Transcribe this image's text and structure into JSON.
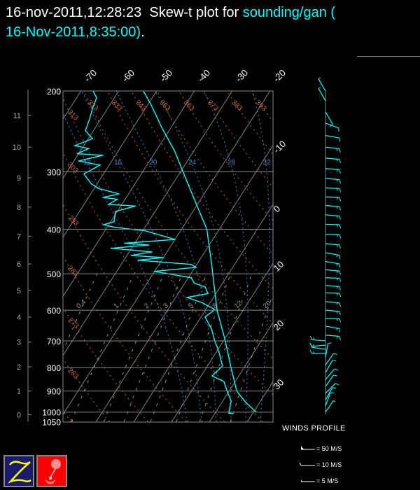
{
  "header": {
    "timestamp": "16-nov-2011,12:28:23",
    "title_text": "Skew-t plot for",
    "sounding_name": "sounding/gan (",
    "sounding_time": "16-Nov-2011,8:35:00)",
    "trailer": "."
  },
  "colors": {
    "background": "#000000",
    "sounding_trace": "#00ffff",
    "isotherm": "#808080",
    "dry_adiabat": "#c8643c",
    "moist_adiabat": "#4682c8",
    "mixing_ratio": "#909090",
    "wind_barb": "#00ffff"
  },
  "legend": {
    "title": "WINDS PROFILE",
    "items": [
      {
        "label": "= 50 M/S",
        "speed": 50
      },
      {
        "label": "= 10 M/S",
        "speed": 10
      },
      {
        "label": "= 5 M/S",
        "speed": 5
      }
    ]
  },
  "logos": [
    "Z logo",
    "balloon logo"
  ],
  "chart_data": {
    "type": "line",
    "subtype": "skew-t log-p",
    "y_axis": {
      "scale": "log",
      "ylim": [
        1050,
        200
      ],
      "unit": "hPa",
      "tick_labels": [
        "200",
        "300",
        "400",
        "500",
        "600",
        "700",
        "800",
        "900",
        "1000",
        "1050"
      ]
    },
    "height_axis": {
      "unit": "km",
      "tick_labels": [
        "0",
        "1",
        "2",
        "3",
        "4",
        "5",
        "6",
        "7",
        "8",
        "9",
        "10",
        "11"
      ],
      "pressure_at_ticks": [
        1013,
        900,
        797,
        704,
        621,
        544,
        476,
        414,
        358,
        309,
        265,
        226
      ]
    },
    "x_axis": {
      "unit": "degC",
      "skewed": true,
      "top_tick_labels": [
        "-70",
        "-60",
        "-50",
        "-40",
        "-30",
        "-20"
      ],
      "right_tick_labels": [
        "-10",
        "0",
        "10",
        "20",
        "30"
      ]
    },
    "dry_adiabat_labels": [
      "253",
      "263",
      "273",
      "283",
      "293",
      "303",
      "313",
      "323",
      "333",
      "343",
      "353",
      "363",
      "373",
      "383",
      "393"
    ],
    "moist_adiabat_labels": [
      "12",
      "16",
      "20",
      "24",
      "28",
      "32"
    ],
    "mixing_ratio_labels": [
      "0.4",
      "1",
      "2",
      "3",
      "5",
      "8",
      "12",
      "20"
    ],
    "series": [
      {
        "role": "temperature",
        "p": [
          200,
          214,
          240,
          270,
          300,
          351,
          400,
          472,
          500,
          600,
          700,
          800,
          900,
          950,
          1000
        ],
        "t": [
          -53.5,
          -49.2,
          -42.5,
          -35.1,
          -29.3,
          -20.6,
          -13.3,
          -6.5,
          -4.2,
          3.1,
          10.5,
          16.5,
          22.0,
          26.1,
          30.7
        ]
      },
      {
        "role": "dewpoint",
        "p": [
          200,
          207,
          217,
          230,
          244,
          254,
          263,
          267,
          274,
          276,
          284,
          290,
          303,
          318,
          326,
          335,
          341,
          344,
          353,
          356,
          366,
          385,
          391,
          396,
          403,
          421,
          429,
          433,
          440,
          448,
          456,
          461,
          467,
          477,
          484,
          494,
          510,
          524,
          534,
          552,
          563,
          577,
          598,
          621,
          659,
          700,
          740,
          794,
          834,
          858,
          904,
          946,
          1005,
          1008
        ],
        "t": [
          -66.8,
          -64.7,
          -64.1,
          -63.0,
          -62.1,
          -58.9,
          -62.4,
          -58.2,
          -60.4,
          -53.3,
          -58.8,
          -52.4,
          -55.2,
          -51.7,
          -48.9,
          -42.5,
          -46.2,
          -42.1,
          -43.5,
          -36.1,
          -40.5,
          -39.1,
          -41.4,
          -38.1,
          -29.4,
          -20.0,
          -32.7,
          -25.9,
          -35.5,
          -24.0,
          -28.9,
          -20.1,
          -26.3,
          -11.5,
          -9.7,
          -20.1,
          -9.2,
          -7.5,
          -4.0,
          -2.1,
          -7.0,
          -2.3,
          2.4,
          1.1,
          4.8,
          7.7,
          10.7,
          14.0,
          12.9,
          17.0,
          19.7,
          22.2,
          23.6,
          24.9
        ]
      }
    ],
    "winds": {
      "unit": "m/s",
      "p": [
        200,
        210,
        222,
        235,
        250,
        265,
        280,
        295,
        310,
        325,
        340,
        355,
        372,
        390,
        410,
        430,
        450,
        470,
        490,
        510,
        530,
        550,
        575,
        600,
        625,
        650,
        680,
        700,
        715,
        730,
        745,
        760,
        790,
        820,
        850,
        880,
        910,
        940,
        970,
        1000
      ],
      "dir": [
        330,
        330,
        150,
        110,
        100,
        97,
        95,
        95,
        95,
        93,
        93,
        95,
        95,
        92,
        92,
        95,
        100,
        100,
        95,
        92,
        95,
        92,
        95,
        95,
        92,
        100,
        95,
        275,
        265,
        278,
        270,
        10,
        35,
        30,
        40,
        35,
        45,
        30,
        20,
        35
      ],
      "speed": [
        5,
        5,
        10,
        12,
        14,
        15,
        16,
        17,
        18,
        19,
        19,
        18,
        17,
        17,
        18,
        17,
        16,
        17,
        18,
        18,
        17,
        18,
        17,
        17,
        18,
        17,
        16,
        18,
        18,
        18,
        15,
        10,
        10,
        10,
        10,
        10,
        10,
        10,
        10,
        8
      ]
    }
  }
}
